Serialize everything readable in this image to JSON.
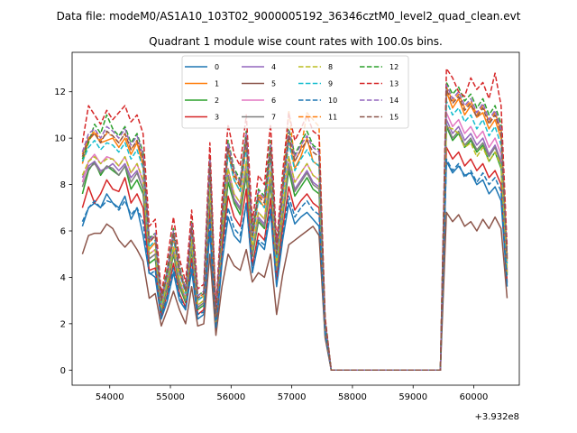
{
  "chart_data": {
    "type": "line",
    "suptitle": "Data file: modeM0/AS1A10_103T02_9000005192_36346cztM0_level2_quad_clean.evt",
    "title": "Quadrant 1 module wise count rates with 100.0s bins.",
    "xlabel": "",
    "ylabel": "",
    "x_offset_label": "+3.932e8",
    "xlim": [
      53380,
      60750
    ],
    "ylim": [
      -0.65,
      13.7
    ],
    "x_ticks": [
      54000,
      55000,
      56000,
      57000,
      58000,
      59000,
      60000
    ],
    "y_ticks": [
      0,
      2,
      4,
      6,
      8,
      10,
      12
    ],
    "grid": false,
    "legend": {
      "placement": "upper-center",
      "columns": 4
    },
    "x": [
      53550,
      53650,
      53750,
      53850,
      53950,
      54050,
      54150,
      54250,
      54350,
      54450,
      54550,
      54650,
      54750,
      54850,
      54950,
      55050,
      55150,
      55250,
      55350,
      55450,
      55550,
      55650,
      55750,
      55850,
      55950,
      56050,
      56150,
      56250,
      56350,
      56450,
      56550,
      56650,
      56750,
      56850,
      56950,
      57050,
      57150,
      57250,
      57350,
      57450,
      57550,
      57650,
      59350,
      59450,
      59550,
      59650,
      59750,
      59850,
      59950,
      60050,
      60150,
      60250,
      60350,
      60450,
      60550
    ],
    "series": [
      {
        "name": "0",
        "color": "#1f77b4",
        "dash": "solid",
        "values": [
          6.2,
          7.0,
          7.2,
          7.0,
          7.6,
          7.2,
          7.0,
          7.5,
          6.5,
          7.0,
          5.8,
          4.2,
          4.0,
          2.2,
          3.0,
          4.2,
          3.0,
          2.6,
          4.3,
          2.2,
          2.4,
          6.0,
          1.6,
          4.6,
          6.6,
          5.8,
          5.5,
          7.2,
          4.2,
          5.5,
          5.2,
          6.8,
          3.6,
          5.6,
          7.2,
          6.3,
          6.6,
          6.8,
          6.5,
          6.2,
          1.5,
          0,
          0,
          0,
          9.0,
          8.5,
          8.8,
          8.4,
          8.5,
          8.0,
          8.2,
          7.6,
          7.9,
          7.3,
          3.6
        ]
      },
      {
        "name": "1",
        "color": "#ff7f0e",
        "dash": "solid",
        "values": [
          8.9,
          9.9,
          10.2,
          9.8,
          9.9,
          10.0,
          9.6,
          10.0,
          9.3,
          9.8,
          8.8,
          5.2,
          5.5,
          2.8,
          4.1,
          5.7,
          4.2,
          3.4,
          6.0,
          3.0,
          3.2,
          8.6,
          2.2,
          6.4,
          9.4,
          8.2,
          7.7,
          9.7,
          5.6,
          7.4,
          7.0,
          9.3,
          4.8,
          7.6,
          10.0,
          8.7,
          9.2,
          10.0,
          9.0,
          8.8,
          2.0,
          0,
          0,
          0,
          12.0,
          11.3,
          11.7,
          11.0,
          11.4,
          10.9,
          11.1,
          10.4,
          10.8,
          10.0,
          4.7
        ]
      },
      {
        "name": "2",
        "color": "#2ca02c",
        "dash": "solid",
        "values": [
          7.6,
          8.6,
          9.0,
          8.4,
          8.8,
          8.6,
          8.4,
          8.8,
          7.8,
          8.2,
          7.6,
          4.6,
          4.8,
          2.5,
          3.6,
          5.0,
          3.6,
          2.9,
          5.2,
          2.6,
          2.8,
          7.5,
          1.9,
          5.6,
          8.1,
          7.2,
          6.7,
          8.4,
          4.9,
          6.4,
          6.1,
          8.0,
          4.2,
          6.6,
          8.6,
          7.5,
          7.9,
          8.3,
          7.8,
          7.6,
          1.8,
          0,
          0,
          0,
          10.5,
          9.9,
          10.2,
          9.6,
          9.9,
          9.4,
          9.7,
          9.0,
          9.4,
          8.7,
          4.1
        ]
      },
      {
        "name": "3",
        "color": "#d62728",
        "dash": "solid",
        "values": [
          7.0,
          7.9,
          7.2,
          7.6,
          8.2,
          7.8,
          7.7,
          8.3,
          7.2,
          7.6,
          7.0,
          4.3,
          4.4,
          2.3,
          3.3,
          4.6,
          3.3,
          2.7,
          4.8,
          2.4,
          2.6,
          6.9,
          1.8,
          5.2,
          7.5,
          6.6,
          6.2,
          7.8,
          4.5,
          5.9,
          5.6,
          7.4,
          3.9,
          6.1,
          7.9,
          6.9,
          7.3,
          7.6,
          7.2,
          7.0,
          1.6,
          0,
          0,
          0,
          9.6,
          9.1,
          9.4,
          8.8,
          9.1,
          8.6,
          8.9,
          8.3,
          8.6,
          8.0,
          3.8
        ]
      },
      {
        "name": "4",
        "color": "#9467bd",
        "dash": "solid",
        "values": [
          8.3,
          8.8,
          9.0,
          8.6,
          8.7,
          8.9,
          8.6,
          8.9,
          8.3,
          8.6,
          7.8,
          4.8,
          5.0,
          2.6,
          3.7,
          5.2,
          3.8,
          3.0,
          5.4,
          2.7,
          2.9,
          7.8,
          2.0,
          5.8,
          8.4,
          7.4,
          7.0,
          8.7,
          5.0,
          6.6,
          6.3,
          8.3,
          4.3,
          6.8,
          8.9,
          7.8,
          8.2,
          8.6,
          8.1,
          7.9,
          1.9,
          0,
          0,
          0,
          10.8,
          10.2,
          10.5,
          9.9,
          10.2,
          9.7,
          10.0,
          9.3,
          9.7,
          9.0,
          4.3
        ]
      },
      {
        "name": "5",
        "color": "#8c564b",
        "dash": "solid",
        "values": [
          5.0,
          5.8,
          5.9,
          5.9,
          6.3,
          6.1,
          5.6,
          5.3,
          5.6,
          5.2,
          4.7,
          3.1,
          3.3,
          1.9,
          2.6,
          3.4,
          2.6,
          2.0,
          3.6,
          1.9,
          2.0,
          5.0,
          1.5,
          3.6,
          5.0,
          4.5,
          4.3,
          5.2,
          3.8,
          4.2,
          4.0,
          5.0,
          2.4,
          4.1,
          5.4,
          5.6,
          5.8,
          6.0,
          6.2,
          5.8,
          1.4,
          0,
          0,
          0,
          6.8,
          6.4,
          6.7,
          6.2,
          6.4,
          6.0,
          6.5,
          6.1,
          6.6,
          6.1,
          3.1
        ]
      },
      {
        "name": "6",
        "color": "#e377c2",
        "dash": "solid",
        "values": [
          8.1,
          9.0,
          9.3,
          8.9,
          9.2,
          9.1,
          8.8,
          9.2,
          8.5,
          8.9,
          8.1,
          5.0,
          5.2,
          2.7,
          3.8,
          5.3,
          3.9,
          3.1,
          5.6,
          2.8,
          3.0,
          8.0,
          2.1,
          6.0,
          8.7,
          7.6,
          7.2,
          9.0,
          5.2,
          6.8,
          6.5,
          8.6,
          4.5,
          7.0,
          9.2,
          8.1,
          8.5,
          8.9,
          8.4,
          8.2,
          1.9,
          0,
          0,
          0,
          11.1,
          10.5,
          10.8,
          10.2,
          10.5,
          10.0,
          10.3,
          9.6,
          10.0,
          9.3,
          4.4
        ]
      },
      {
        "name": "7",
        "color": "#7f7f7f",
        "dash": "solid",
        "values": [
          7.9,
          8.7,
          8.9,
          8.5,
          8.8,
          8.7,
          8.4,
          8.8,
          8.1,
          8.5,
          7.8,
          4.8,
          5.0,
          2.6,
          3.7,
          5.1,
          3.7,
          3.0,
          5.4,
          2.7,
          2.9,
          7.7,
          2.0,
          5.8,
          8.4,
          7.3,
          6.9,
          8.6,
          5.0,
          6.5,
          6.2,
          8.2,
          4.3,
          6.7,
          8.8,
          7.7,
          8.1,
          8.5,
          8.0,
          7.8,
          1.8,
          0,
          0,
          0,
          10.6,
          10.0,
          10.3,
          9.7,
          10.0,
          9.5,
          9.8,
          9.2,
          9.6,
          8.9,
          4.2
        ]
      },
      {
        "name": "8",
        "color": "#bcbd22",
        "dash": "dashed",
        "values": [
          8.4,
          9.0,
          9.2,
          8.9,
          9.1,
          9.1,
          8.8,
          9.2,
          8.5,
          8.9,
          8.2,
          5.0,
          5.2,
          2.7,
          3.8,
          5.3,
          3.9,
          3.1,
          5.6,
          2.8,
          3.0,
          8.0,
          2.1,
          6.0,
          8.7,
          7.6,
          7.2,
          9.0,
          5.2,
          6.8,
          6.5,
          8.6,
          4.5,
          7.0,
          9.2,
          8.1,
          8.5,
          8.9,
          8.4,
          8.2,
          1.9,
          0,
          0,
          0,
          10.5,
          10.4,
          10.2,
          9.6,
          9.8,
          9.2,
          9.6,
          9.0,
          9.4,
          8.8,
          4.2
        ]
      },
      {
        "name": "9",
        "color": "#17becf",
        "dash": "dashed",
        "values": [
          9.0,
          9.6,
          9.9,
          9.5,
          9.8,
          9.7,
          9.4,
          9.8,
          9.1,
          9.5,
          8.7,
          5.3,
          5.6,
          2.9,
          4.1,
          5.7,
          4.2,
          3.3,
          6.0,
          3.0,
          3.2,
          8.6,
          2.2,
          6.4,
          9.3,
          8.2,
          7.7,
          9.6,
          5.6,
          7.3,
          7.0,
          9.2,
          4.8,
          7.5,
          9.8,
          8.6,
          9.1,
          9.5,
          9.0,
          8.8,
          2.0,
          0,
          0,
          0,
          11.6,
          11.0,
          11.3,
          10.7,
          11.0,
          10.4,
          10.8,
          10.1,
          10.5,
          9.7,
          4.6
        ]
      },
      {
        "name": "10",
        "color": "#1f77b4",
        "dash": "dashed",
        "values": [
          6.4,
          7.0,
          7.3,
          7.0,
          7.3,
          7.2,
          6.9,
          7.3,
          6.7,
          7.0,
          6.4,
          4.1,
          4.3,
          2.3,
          3.2,
          4.4,
          3.2,
          2.6,
          4.6,
          2.4,
          2.5,
          6.5,
          1.8,
          4.8,
          7.0,
          6.1,
          5.8,
          7.2,
          4.3,
          5.6,
          5.4,
          7.0,
          3.7,
          5.8,
          7.5,
          6.6,
          7.0,
          7.3,
          6.9,
          6.7,
          1.6,
          0,
          0,
          0,
          9.1,
          8.6,
          8.9,
          8.3,
          8.6,
          8.1,
          8.5,
          8.0,
          8.3,
          7.7,
          3.7
        ]
      },
      {
        "name": "11",
        "color": "#ff7f0e",
        "dash": "dashed",
        "values": [
          9.3,
          10.0,
          10.3,
          9.9,
          10.2,
          10.1,
          9.8,
          10.2,
          9.5,
          9.9,
          9.1,
          5.5,
          5.8,
          3.0,
          4.3,
          5.9,
          4.4,
          3.4,
          6.2,
          3.1,
          3.3,
          8.9,
          2.3,
          6.6,
          9.6,
          8.5,
          8.0,
          10.0,
          5.8,
          7.6,
          7.3,
          9.6,
          5.0,
          7.8,
          11.2,
          9.0,
          9.5,
          11.1,
          10.8,
          10.5,
          2.1,
          0,
          0,
          0,
          12.2,
          11.6,
          11.9,
          11.3,
          11.6,
          11.0,
          11.4,
          10.7,
          11.1,
          10.3,
          4.8
        ]
      },
      {
        "name": "12",
        "color": "#2ca02c",
        "dash": "dashed",
        "values": [
          9.1,
          9.8,
          10.6,
          10.2,
          11.0,
          10.4,
          10.1,
          10.5,
          9.8,
          10.2,
          9.4,
          5.7,
          5.9,
          3.1,
          4.4,
          6.1,
          4.5,
          3.5,
          6.4,
          3.2,
          3.4,
          9.2,
          2.4,
          6.8,
          9.9,
          8.7,
          8.2,
          10.3,
          6.0,
          7.8,
          7.5,
          9.9,
          5.2,
          8.0,
          10.4,
          9.3,
          9.8,
          10.3,
          9.7,
          9.5,
          2.2,
          0,
          0,
          0,
          12.4,
          11.9,
          12.2,
          11.6,
          11.9,
          11.3,
          11.7,
          11.0,
          11.4,
          10.6,
          5.0
        ]
      },
      {
        "name": "13",
        "color": "#d62728",
        "dash": "dashed",
        "values": [
          9.8,
          11.4,
          11.0,
          10.6,
          11.2,
          10.8,
          11.1,
          11.4,
          10.7,
          11.0,
          10.2,
          6.2,
          6.5,
          3.3,
          4.8,
          6.6,
          4.8,
          3.8,
          6.9,
          3.5,
          3.7,
          9.8,
          2.6,
          7.3,
          10.6,
          9.3,
          8.8,
          11.0,
          6.4,
          8.4,
          8.0,
          10.6,
          5.5,
          8.5,
          11.1,
          9.9,
          10.4,
          11.0,
          10.3,
          10.1,
          2.3,
          0,
          0,
          0,
          13.0,
          12.6,
          12.0,
          11.8,
          12.6,
          12.1,
          12.4,
          11.7,
          12.8,
          11.4,
          5.3
        ]
      },
      {
        "name": "14",
        "color": "#9467bd",
        "dash": "dashed",
        "values": [
          9.4,
          10.2,
          10.4,
          10.0,
          10.5,
          10.3,
          10.0,
          10.4,
          9.7,
          10.1,
          9.3,
          5.6,
          5.9,
          3.0,
          4.3,
          6.0,
          4.4,
          3.5,
          6.3,
          3.2,
          3.4,
          9.1,
          2.4,
          6.7,
          9.8,
          8.6,
          8.1,
          10.2,
          5.9,
          7.7,
          7.4,
          9.7,
          5.1,
          7.9,
          10.3,
          9.2,
          9.7,
          10.1,
          9.6,
          9.4,
          2.1,
          0,
          0,
          0,
          12.3,
          11.7,
          12.0,
          11.4,
          11.7,
          11.1,
          11.5,
          10.8,
          11.2,
          10.4,
          4.9
        ]
      },
      {
        "name": "15",
        "color": "#8c564b",
        "dash": "dashed",
        "values": [
          9.2,
          10.0,
          10.2,
          9.8,
          10.3,
          10.1,
          9.8,
          10.2,
          9.5,
          9.9,
          9.1,
          5.5,
          5.8,
          3.0,
          4.2,
          5.9,
          4.3,
          3.4,
          6.2,
          3.1,
          3.3,
          8.9,
          2.3,
          6.6,
          9.6,
          8.4,
          7.9,
          10.0,
          5.8,
          7.5,
          7.2,
          9.5,
          5.0,
          7.8,
          10.1,
          9.0,
          9.5,
          9.9,
          9.4,
          9.2,
          2.1,
          0,
          0,
          0,
          12.1,
          11.5,
          11.8,
          11.2,
          11.5,
          10.9,
          11.3,
          10.6,
          11.0,
          10.2,
          4.8
        ]
      }
    ]
  }
}
